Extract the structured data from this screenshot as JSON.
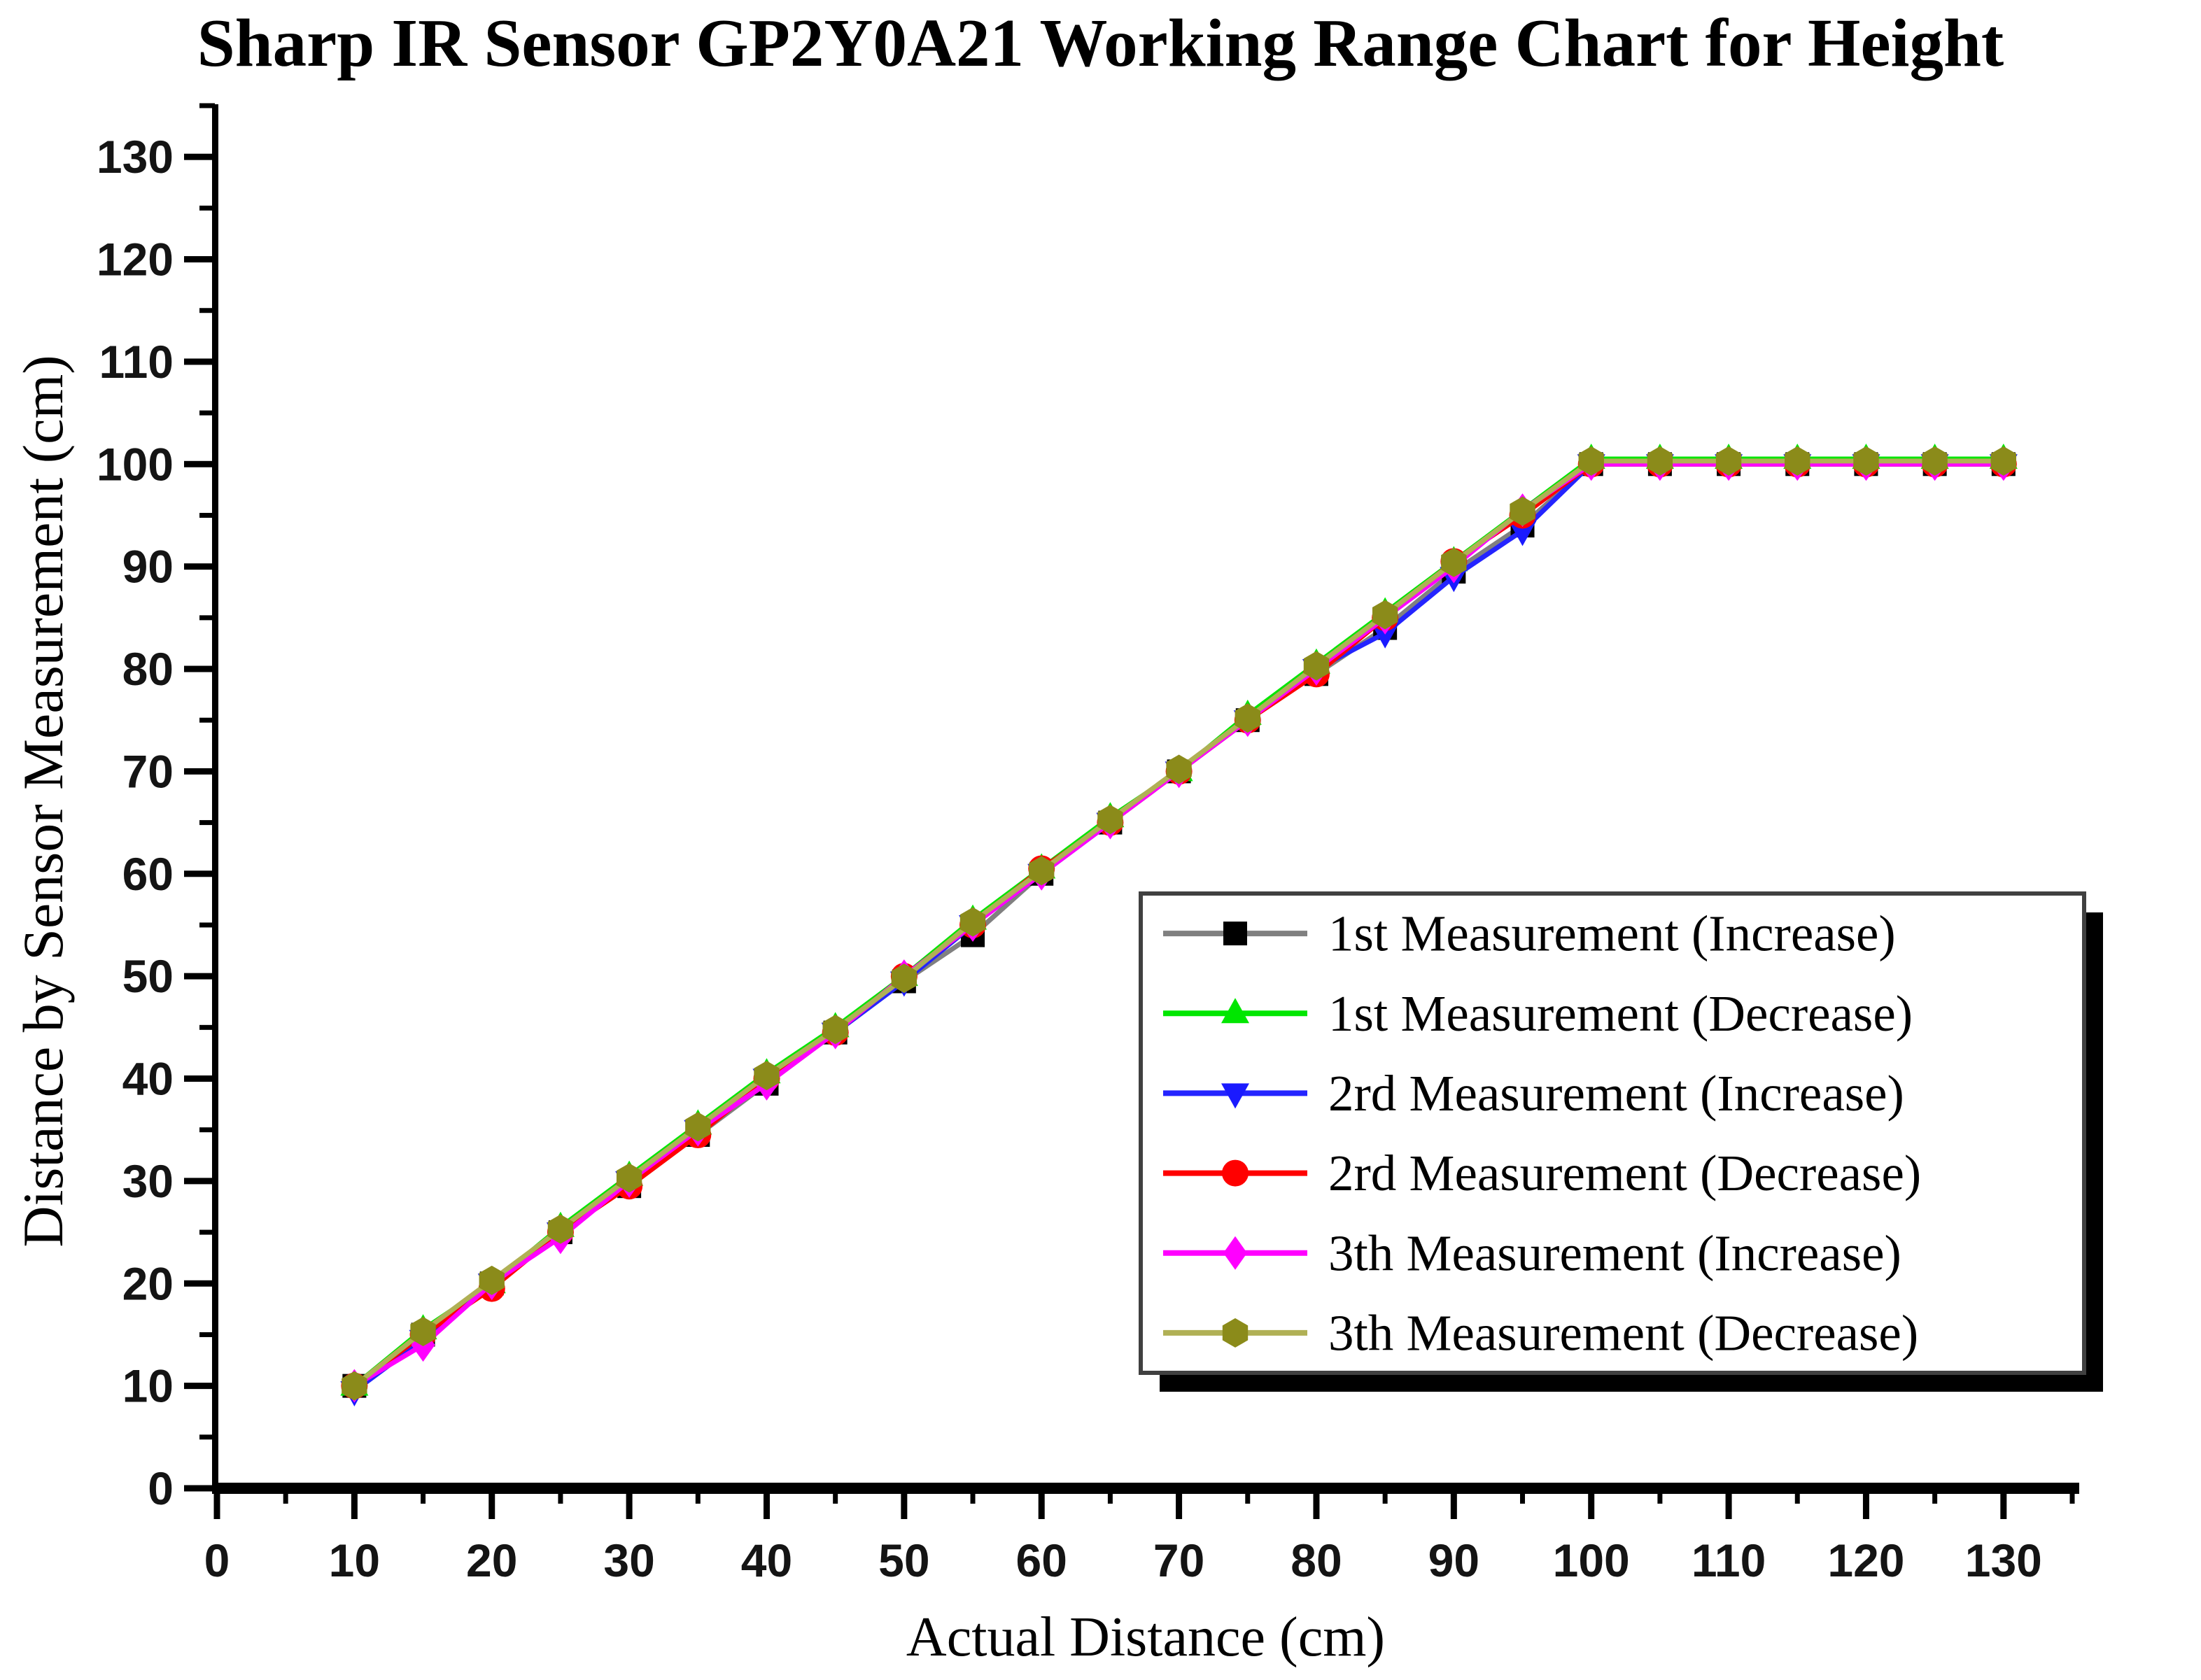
{
  "chart_data": {
    "type": "line",
    "title": "Sharp IR Sensor GP2Y0A21 Working Range Chart for Height",
    "xlabel": "Actual Distance (cm)",
    "ylabel": "Distance by Sensor Measurement (cm)",
    "xlim": [
      0,
      135
    ],
    "ylim": [
      0,
      135
    ],
    "x_major_ticks": [
      0,
      10,
      20,
      30,
      40,
      50,
      60,
      70,
      80,
      90,
      100,
      110,
      120,
      130
    ],
    "x_minor_ticks": [
      5,
      15,
      25,
      35,
      45,
      55,
      65,
      75,
      85,
      95,
      105,
      115,
      125,
      135
    ],
    "y_major_ticks": [
      0,
      10,
      20,
      30,
      40,
      50,
      60,
      70,
      80,
      90,
      100,
      110,
      120,
      130
    ],
    "y_minor_ticks": [
      5,
      15,
      25,
      35,
      45,
      55,
      65,
      75,
      85,
      95,
      105,
      115,
      125,
      135
    ],
    "grid": false,
    "legend_position": "inside-lower-right",
    "x": [
      10,
      15,
      20,
      25,
      30,
      35,
      40,
      45,
      50,
      55,
      60,
      65,
      70,
      75,
      80,
      85,
      90,
      95,
      100,
      105,
      110,
      115,
      120,
      125,
      130
    ],
    "series": [
      {
        "name": "1st Measurement (Increase)",
        "marker": "square",
        "line_color": "#808080",
        "marker_color": "#000000",
        "values": [
          10,
          15,
          20,
          25,
          29.5,
          34.5,
          39.5,
          44.5,
          49.5,
          54,
          60,
          65,
          70,
          75,
          79.5,
          84,
          89.5,
          94,
          100,
          100,
          100,
          100,
          100,
          100,
          100
        ]
      },
      {
        "name": "1st Measurement (Decrease)",
        "marker": "triangle-up",
        "line_color": "#00e600",
        "marker_color": "#00e600",
        "values": [
          10,
          15.5,
          20,
          25.5,
          30.5,
          35.5,
          40.5,
          45,
          50,
          55.5,
          60.5,
          65.5,
          70,
          75.5,
          80.5,
          85.5,
          90.5,
          95.5,
          100.5,
          100.5,
          100.5,
          100.5,
          100.5,
          100.5,
          100.5
        ]
      },
      {
        "name": "2rd Measurement (Increase)",
        "marker": "triangle-down",
        "line_color": "#2424ff",
        "marker_color": "#1a1aff",
        "values": [
          9.5,
          14.5,
          20,
          25,
          30,
          35,
          40,
          44.5,
          49.5,
          55,
          60,
          65,
          70,
          75,
          80,
          83.5,
          89,
          93.5,
          100,
          100,
          100,
          100,
          100,
          100,
          100
        ]
      },
      {
        "name": "2rd Measurement (Decrease)",
        "marker": "circle",
        "line_color": "#ff0000",
        "marker_color": "#ff0000",
        "values": [
          10,
          15,
          19.5,
          25,
          29.5,
          34.5,
          40,
          44.5,
          50,
          55,
          60.5,
          65,
          70,
          75,
          79.5,
          85,
          90.5,
          95,
          100,
          100,
          100,
          100,
          100,
          100,
          100
        ]
      },
      {
        "name": "3th Measurement (Increase)",
        "marker": "diamond",
        "line_color": "#ff00ff",
        "marker_color": "#ff00ff",
        "values": [
          10,
          14,
          20,
          24.5,
          30,
          35,
          39.5,
          44.5,
          50,
          55,
          60,
          65,
          70,
          75,
          80,
          85,
          90,
          95.5,
          100,
          100,
          100,
          100,
          100,
          100,
          100
        ]
      },
      {
        "name": "3th Measurement (Decrease)",
        "marker": "hexagon",
        "line_color": "#b0b055",
        "marker_color": "#8b8b1a",
        "values": [
          10,
          15.3,
          20.3,
          25.3,
          30.3,
          35.3,
          40.3,
          44.8,
          49.8,
          55.3,
          60.3,
          65.3,
          70.2,
          75.2,
          80.3,
          85.3,
          90.4,
          95.4,
          100.3,
          100.3,
          100.3,
          100.3,
          100.3,
          100.3,
          100.3
        ]
      }
    ]
  },
  "style_colors": {
    "axis": "#000000",
    "tick_label": "#141414",
    "legend_border": "#404040",
    "legend_shadow": "#000000",
    "legend_background": "#ffffff"
  }
}
